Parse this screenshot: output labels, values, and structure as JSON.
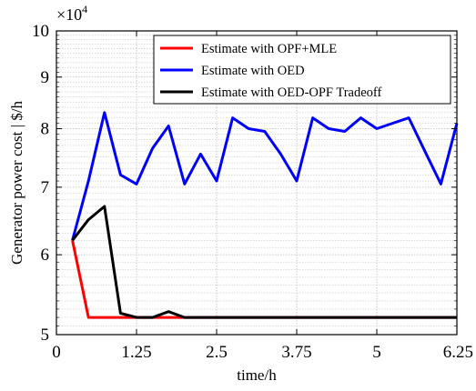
{
  "chart_data": {
    "type": "line",
    "title": "",
    "xlabel": "time/h",
    "ylabel": "Generator power cost | $/h",
    "y_multiplier_label": "×10^4",
    "y_multiplier_base": "×10",
    "y_multiplier_exp": "4",
    "y_scale": "log",
    "xlim": [
      0,
      6.25
    ],
    "ylim": [
      5,
      10
    ],
    "x_ticks": [
      0,
      1.25,
      2.5,
      3.75,
      5,
      6.25
    ],
    "x_tick_labels": [
      "0",
      "1.25",
      "2.5",
      "3.75",
      "5",
      "6.25"
    ],
    "y_ticks": [
      5,
      6,
      7,
      8,
      9,
      10
    ],
    "y_tick_labels": [
      "5",
      "6",
      "7",
      "8",
      "9",
      "10"
    ],
    "grid": true,
    "legend_position": "top-right",
    "x": [
      0.25,
      0.5,
      0.75,
      1.0,
      1.25,
      1.5,
      1.75,
      2.0,
      2.25,
      2.5,
      2.75,
      3.0,
      3.25,
      3.5,
      3.75,
      4.0,
      4.25,
      4.5,
      4.75,
      5.0,
      5.25,
      5.5,
      5.75,
      6.0,
      6.25
    ],
    "series": [
      {
        "name": "Estimate with OPF+MLE",
        "color": "#ff0000",
        "values": [
          6.2,
          5.2,
          5.2,
          5.2,
          5.2,
          5.2,
          5.2,
          5.2,
          5.2,
          5.2,
          5.2,
          5.2,
          5.2,
          5.2,
          5.2,
          5.2,
          5.2,
          5.2,
          5.2,
          5.2,
          5.2,
          5.2,
          5.2,
          5.2,
          5.2
        ]
      },
      {
        "name": "Estimate with OED",
        "color": "#0000ff",
        "values": [
          6.2,
          7.1,
          8.3,
          7.2,
          7.05,
          7.65,
          8.05,
          7.05,
          7.55,
          7.1,
          8.2,
          8.0,
          7.95,
          7.55,
          7.1,
          8.2,
          8.0,
          7.95,
          8.2,
          8.0,
          8.1,
          8.2,
          7.6,
          7.05,
          8.1
        ]
      },
      {
        "name": "Estimate with OED-OPF Tradeoff",
        "color": "#000000",
        "values": [
          6.2,
          6.5,
          6.7,
          5.25,
          5.2,
          5.2,
          5.27,
          5.2,
          5.2,
          5.2,
          5.2,
          5.2,
          5.2,
          5.2,
          5.2,
          5.2,
          5.2,
          5.2,
          5.2,
          5.2,
          5.2,
          5.2,
          5.2,
          5.2,
          5.2
        ]
      }
    ]
  }
}
